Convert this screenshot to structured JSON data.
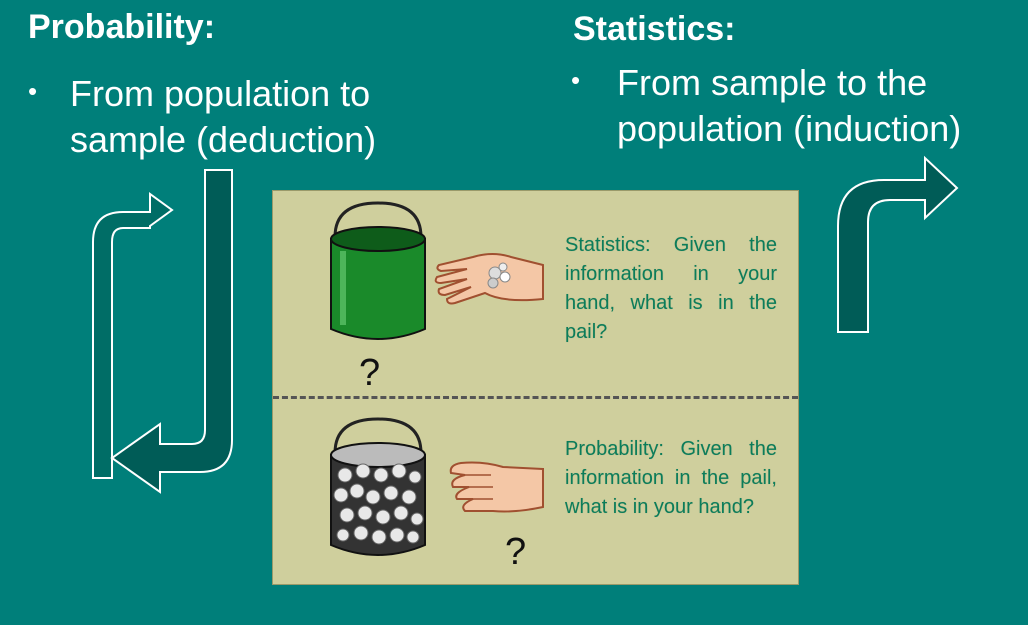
{
  "probability": {
    "title": "Probability:",
    "bullet": "From population to sample (deduction)"
  },
  "statistics": {
    "title": "Statistics:",
    "bullet": "From sample to the population (induction)"
  },
  "panel": {
    "statistics_text": "Statistics: Given the information in your hand, what is in the pail?",
    "probability_text": "Probability: Given the information in the pail, what is in your hand?",
    "question_mark": "?"
  },
  "colors": {
    "background": "#007f7a",
    "panel": "#cfcf9d",
    "panel_text": "#0b7d5a",
    "arrow_fill": "#005c57",
    "green_pail": "#1a8a2a"
  }
}
